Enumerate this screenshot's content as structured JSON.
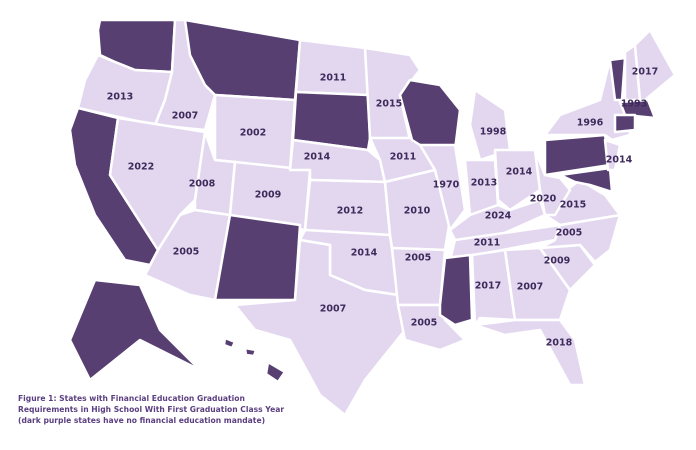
{
  "map_labels": [
    "2013",
    "2007",
    "2002",
    "2011",
    "2015",
    "2014",
    "2011",
    "1998",
    "2017",
    "1996",
    "1993",
    "2014",
    "2022",
    "2008",
    "2009",
    "2012",
    "2010",
    "1970",
    "2013",
    "2014",
    "2020",
    "2015",
    "2024",
    "2011",
    "2005",
    "2005",
    "2014",
    "2005",
    "2009",
    "2007",
    "2017",
    "2007",
    "2005",
    "2018"
  ],
  "caption": [
    "Figure 1: States with Financial Education Graduation",
    "Requirements in High School With First Graduation Class Year",
    "(dark purple states have no financial education mandate)"
  ]
}
